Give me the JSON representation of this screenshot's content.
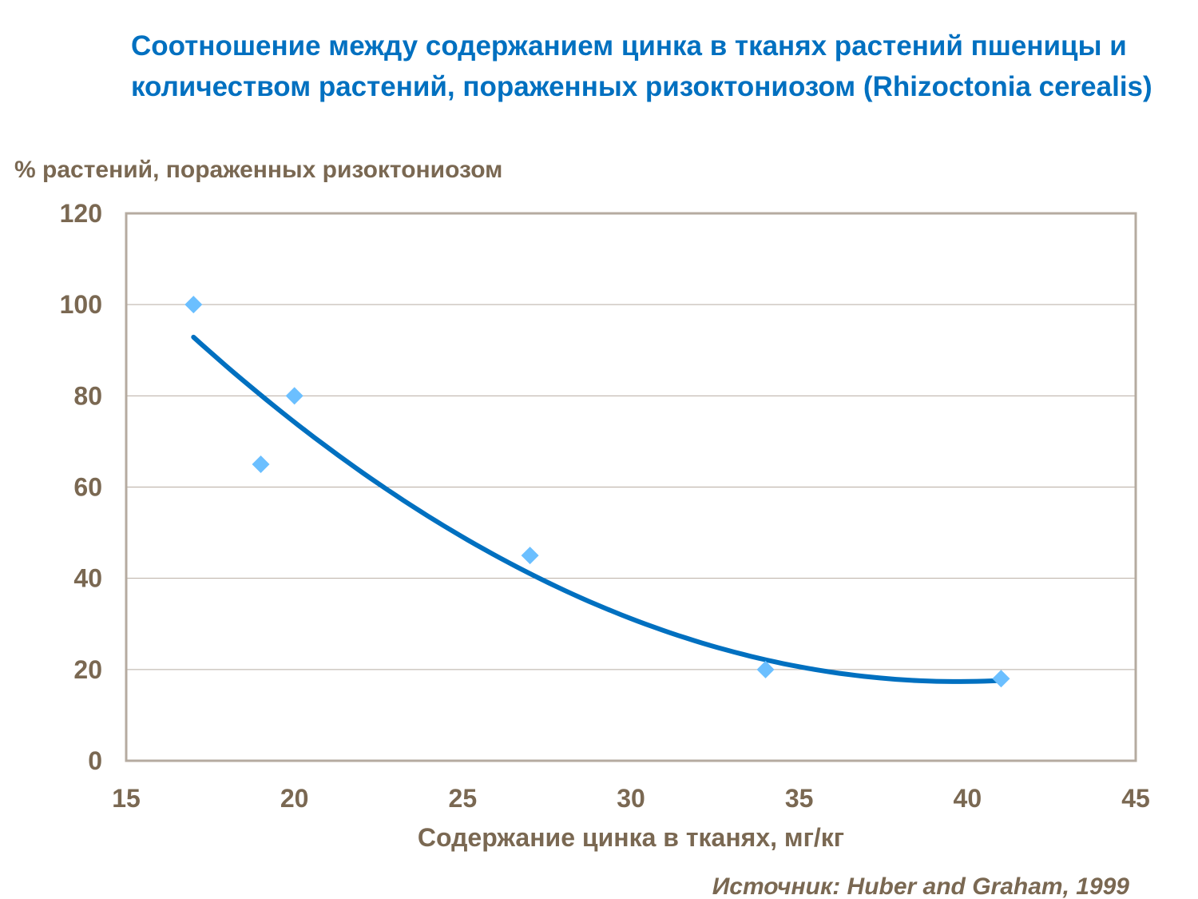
{
  "chart_data": {
    "type": "scatter",
    "title": "Соотношение между содержанием цинка в тканях растений пшеницы и количеством растений, пораженных ризоктониозом (Rhizoctonia cerealis)",
    "xlabel": "Содержание цинка в тканях, мг/кг",
    "ylabel": "% растений, пораженных ризоктониозом",
    "source": "Источник: Huber and Graham, 1999",
    "xlim": [
      15,
      45
    ],
    "ylim": [
      0,
      120
    ],
    "xticks": [
      15,
      20,
      25,
      30,
      35,
      40,
      45
    ],
    "yticks": [
      0,
      20,
      40,
      60,
      80,
      100,
      120
    ],
    "grid": "horizontal",
    "trendline": "polynomial-2",
    "x": [
      17,
      19,
      20,
      27,
      34,
      41
    ],
    "y": [
      100,
      65,
      80,
      45,
      20,
      18
    ],
    "colors": {
      "markers": "#6BBFFF",
      "trendline": "#0070C0",
      "title": "#0070C0",
      "text": "#7A6852",
      "grid": "#B8ADA3"
    }
  }
}
